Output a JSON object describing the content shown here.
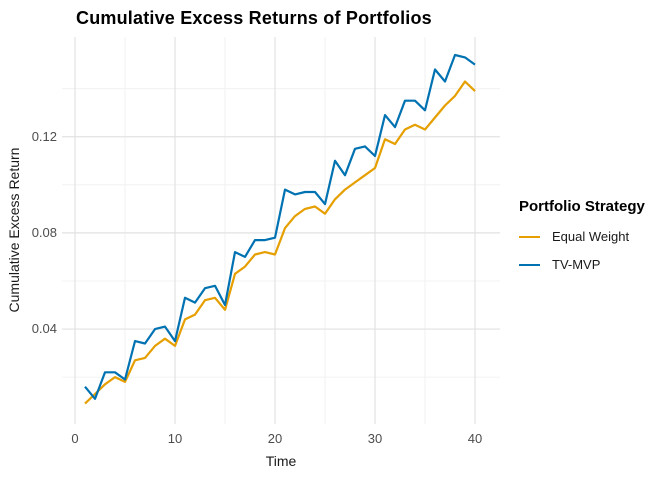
{
  "title": "Cumulative Excess Returns of Portfolios",
  "chart_data": {
    "type": "line",
    "x": [
      1,
      2,
      3,
      4,
      5,
      6,
      7,
      8,
      9,
      10,
      11,
      12,
      13,
      14,
      15,
      16,
      17,
      18,
      19,
      20,
      21,
      22,
      23,
      24,
      25,
      26,
      27,
      28,
      29,
      30,
      31,
      32,
      33,
      34,
      35,
      36,
      37,
      38,
      39,
      40
    ],
    "series": [
      {
        "name": "Equal Weight",
        "color": "#E69F00",
        "values": [
          0.009,
          0.013,
          0.017,
          0.02,
          0.018,
          0.027,
          0.028,
          0.033,
          0.036,
          0.033,
          0.044,
          0.046,
          0.052,
          0.053,
          0.048,
          0.063,
          0.066,
          0.071,
          0.072,
          0.071,
          0.082,
          0.087,
          0.09,
          0.091,
          0.088,
          0.094,
          0.098,
          0.101,
          0.104,
          0.107,
          0.119,
          0.117,
          0.123,
          0.125,
          0.123,
          0.128,
          0.133,
          0.137,
          0.143,
          0.139
        ]
      },
      {
        "name": "TV-MVP",
        "color": "#0072B2",
        "values": [
          0.016,
          0.011,
          0.022,
          0.022,
          0.019,
          0.035,
          0.034,
          0.04,
          0.041,
          0.035,
          0.053,
          0.051,
          0.057,
          0.058,
          0.05,
          0.072,
          0.07,
          0.077,
          0.077,
          0.078,
          0.098,
          0.096,
          0.097,
          0.097,
          0.092,
          0.11,
          0.104,
          0.115,
          0.116,
          0.112,
          0.129,
          0.124,
          0.135,
          0.135,
          0.131,
          0.148,
          0.143,
          0.154,
          0.153,
          0.15
        ]
      }
    ],
    "xlabel": "Time",
    "ylabel": "Cumulative Excess Return",
    "x_ticks": [
      0,
      10,
      20,
      30,
      40
    ],
    "x_tick_labels": [
      "0",
      "10",
      "20",
      "30",
      "40"
    ],
    "x_minor": [
      5,
      15,
      25,
      35
    ],
    "y_ticks": [
      0.04,
      0.08,
      0.12
    ],
    "y_tick_labels": [
      "0.04",
      "0.08",
      "0.12"
    ],
    "y_minor": [
      0.02,
      0.06,
      0.1,
      0.14
    ],
    "xlim": [
      -1.3,
      42.5
    ],
    "ylim": [
      0.0005,
      0.1615
    ],
    "grid": true,
    "legend": {
      "title": "Portfolio Strategy",
      "position": "right"
    }
  },
  "colors": {
    "background": "#FFFFFF",
    "grid_major": "#E2E2E2",
    "grid_minor": "#EFEFEF",
    "tick_text": "#4D4D4D",
    "axis_title": "#1A1A1A",
    "title_text": "#000000"
  }
}
